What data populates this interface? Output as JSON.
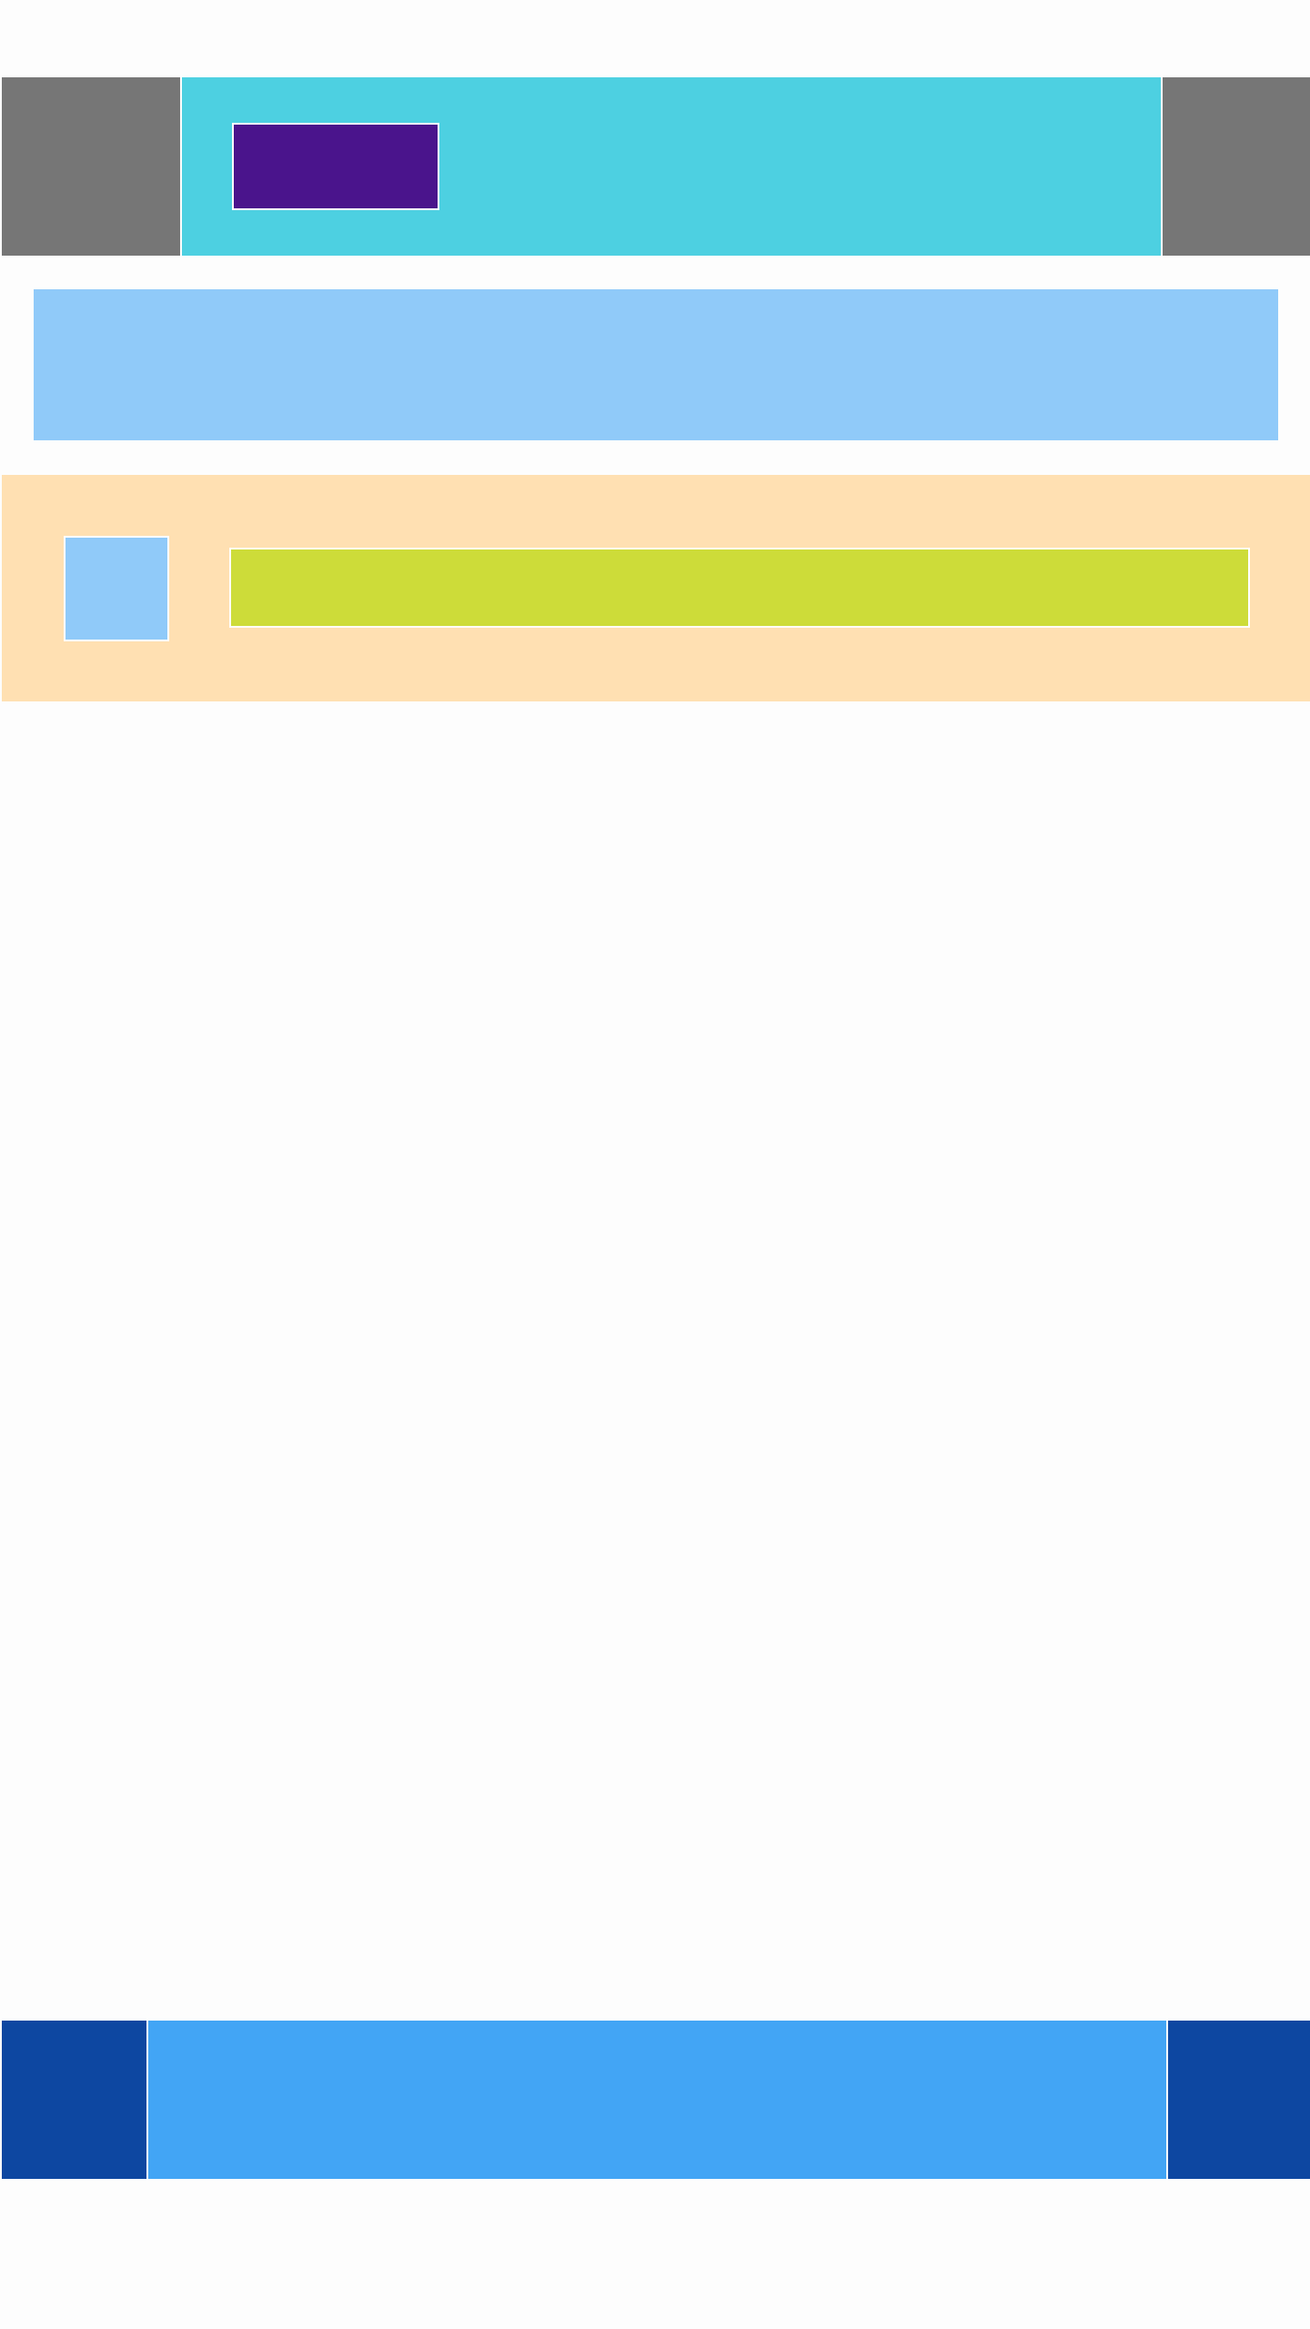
{
  "app_bar": {
    "left_color": "#767676",
    "center_color": "#4dd0e1",
    "right_color": "#767676",
    "badge_color": "#4a148c"
  },
  "banner": {
    "color": "#90caf9"
  },
  "list_row": {
    "background_color": "#ffe0b2",
    "thumbnail_color": "#90caf9",
    "bar_color": "#cddc39"
  },
  "bottom_nav": {
    "left_color": "#0d47a1",
    "center_color": "#42a5f5",
    "right_color": "#0d47a1"
  },
  "page": {
    "background_color": "#fdfdfd"
  }
}
